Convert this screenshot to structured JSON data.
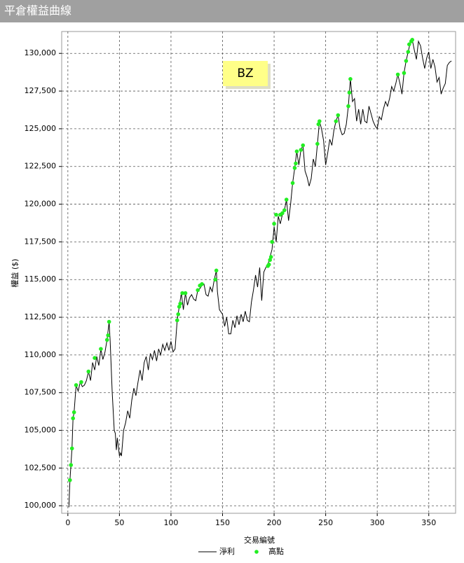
{
  "chart_data": {
    "type": "line",
    "title": "平倉權益曲線",
    "annotation": "BZ",
    "x_label": "交易編號",
    "y_label": "權益 ($)",
    "xlim": [
      -6,
      376
    ],
    "ylim": [
      99500,
      131450
    ],
    "xticks": [
      0,
      50,
      100,
      150,
      200,
      250,
      300,
      350
    ],
    "yticks": [
      {
        "value": 100000,
        "label": "100,000"
      },
      {
        "value": 102500,
        "label": "102,500"
      },
      {
        "value": 105000,
        "label": "105,000"
      },
      {
        "value": 107500,
        "label": "107,500"
      },
      {
        "value": 110000,
        "label": "110,000"
      },
      {
        "value": 112500,
        "label": "112,500"
      },
      {
        "value": 115000,
        "label": "115,000"
      },
      {
        "value": 117500,
        "label": "117,500"
      },
      {
        "value": 120000,
        "label": "120,000"
      },
      {
        "value": 122500,
        "label": "122,500"
      },
      {
        "value": 125000,
        "label": "125,000"
      },
      {
        "value": 127500,
        "label": "127,500"
      },
      {
        "value": 130000,
        "label": "130,000"
      }
    ],
    "grid": true,
    "series": [
      {
        "name": "淨利",
        "type": "line",
        "color": "#000000",
        "x": [
          1,
          2,
          3,
          4,
          5,
          6,
          8,
          10,
          12,
          14,
          16,
          18,
          20,
          22,
          24,
          26,
          28,
          30,
          32,
          34,
          36,
          38,
          40,
          41,
          43,
          45,
          46,
          47,
          48,
          50,
          51,
          52,
          54,
          56,
          58,
          60,
          62,
          64,
          66,
          68,
          70,
          72,
          74,
          76,
          78,
          80,
          82,
          84,
          86,
          88,
          90,
          92,
          94,
          96,
          98,
          100,
          102,
          104,
          106,
          108,
          110,
          112,
          114,
          116,
          118,
          120,
          122,
          124,
          126,
          128,
          130,
          132,
          134,
          136,
          138,
          140,
          142,
          144,
          145,
          147,
          150,
          152,
          154,
          156,
          158,
          160,
          162,
          164,
          166,
          168,
          170,
          172,
          174,
          176,
          178,
          180,
          182,
          184,
          186,
          188,
          190,
          192,
          194,
          196,
          198,
          200,
          202,
          204,
          206,
          208,
          210,
          212,
          214,
          216,
          218,
          220,
          222,
          224,
          226,
          228,
          230,
          232,
          234,
          236,
          238,
          240,
          242,
          244,
          246,
          248,
          250,
          252,
          254,
          256,
          258,
          260,
          262,
          264,
          266,
          268,
          270,
          272,
          274,
          276,
          278,
          280,
          282,
          284,
          286,
          288,
          290,
          292,
          294,
          296,
          298,
          300,
          302,
          304,
          306,
          308,
          310,
          312,
          314,
          316,
          318,
          320,
          322,
          324,
          326,
          328,
          330,
          332,
          334,
          336,
          338,
          340,
          342,
          344,
          346,
          348,
          350,
          352,
          354,
          356,
          358,
          360,
          362,
          364,
          366,
          368,
          370,
          372
        ],
        "values": [
          99900,
          101700,
          102700,
          103800,
          105800,
          106200,
          108000,
          107600,
          108200,
          107900,
          108000,
          108300,
          108900,
          108300,
          109500,
          109000,
          109900,
          109300,
          110400,
          109700,
          110200,
          111000,
          112200,
          111000,
          107500,
          105000,
          104800,
          103700,
          104500,
          103300,
          103500,
          103300,
          105000,
          105500,
          106300,
          105800,
          107000,
          107800,
          107300,
          108200,
          109000,
          108300,
          109500,
          109900,
          109000,
          110100,
          109700,
          110300,
          109600,
          110400,
          110000,
          110700,
          110300,
          110800,
          110300,
          110900,
          110200,
          110400,
          112300,
          113200,
          114100,
          113000,
          114100,
          113300,
          113800,
          114000,
          113700,
          113600,
          114300,
          114400,
          114600,
          114700,
          114000,
          113900,
          114500,
          114200,
          115000,
          115600,
          114200,
          113000,
          112700,
          111900,
          112500,
          111400,
          111400,
          112300,
          111800,
          112600,
          112000,
          112700,
          112200,
          112900,
          112300,
          112200,
          113500,
          114300,
          115300,
          114500,
          115800,
          113600,
          115500,
          115800,
          116000,
          116500,
          117000,
          118500,
          117500,
          119200,
          118700,
          119300,
          119600,
          120300,
          118900,
          120000,
          121400,
          122400,
          123500,
          122600,
          123600,
          123900,
          122200,
          121800,
          121200,
          121700,
          123000,
          122500,
          124000,
          125500,
          125000,
          124200,
          122600,
          123400,
          124300,
          123900,
          124900,
          125500,
          125900,
          125000,
          124600,
          124700,
          125300,
          126500,
          128300,
          126800,
          127000,
          125500,
          126300,
          125300,
          126300,
          125500,
          125400,
          126500,
          126000,
          125500,
          125200,
          125000,
          125800,
          125600,
          126300,
          126800,
          126500,
          127000,
          127800,
          127500,
          128000,
          128600,
          128000,
          127300,
          128700,
          129500,
          130100,
          130700,
          130900,
          130200,
          129600,
          130800,
          130500,
          129700,
          129000,
          129700,
          130100,
          129000,
          129600,
          129100,
          128100,
          128400,
          127300,
          127700,
          128000,
          129200,
          129400,
          129500
        ]
      },
      {
        "name": "高點",
        "type": "scatter",
        "color": "#22ee22",
        "x": [
          2,
          3,
          4,
          5,
          6,
          8,
          13,
          20,
          26,
          32,
          38,
          39,
          40,
          106,
          107,
          108,
          109,
          111,
          114,
          126,
          128,
          130,
          143,
          144,
          194,
          195,
          196,
          197,
          198,
          200,
          202,
          206,
          208,
          210,
          212,
          218,
          220,
          221,
          222,
          226,
          228,
          242,
          243,
          244,
          260,
          262,
          272,
          273,
          274,
          320,
          326,
          328,
          330,
          331,
          333,
          334
        ],
        "values": [
          101700,
          102700,
          103800,
          105800,
          106200,
          108000,
          108200,
          108900,
          109800,
          110400,
          111000,
          111300,
          112200,
          112300,
          112700,
          113200,
          113400,
          114100,
          114100,
          114300,
          114600,
          114700,
          115000,
          115600,
          115900,
          116000,
          116300,
          116500,
          117500,
          118700,
          119300,
          119300,
          119400,
          119600,
          120300,
          121400,
          122400,
          122700,
          123500,
          123600,
          123900,
          124000,
          125300,
          125500,
          125500,
          125900,
          126500,
          127400,
          128300,
          128600,
          128700,
          129500,
          130100,
          130600,
          130800,
          130900
        ]
      }
    ]
  }
}
